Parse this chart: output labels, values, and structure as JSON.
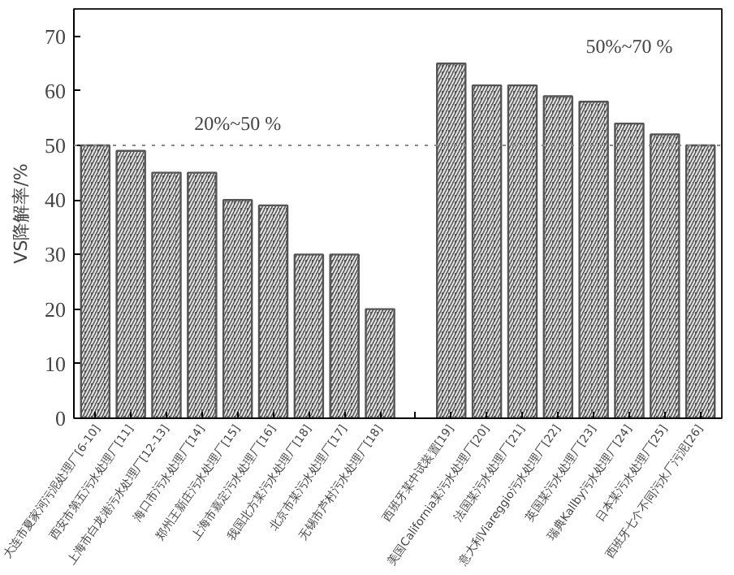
{
  "chart_data": {
    "type": "bar",
    "ylabel": "VS降解率/%",
    "categories": [
      "大连市夏家河污泥处理厂[6-10]",
      "西安市第五污水处理厂[11]",
      "上海市白龙港污水处理厂[12-13]",
      "海口市污水处理厂[14]",
      "郑州王新庄污水处理厂[15]",
      "上海市嘉定污水处理厂[16]",
      "我国北方某污水处理厂[18]",
      "北京市某污水处理厂[17]",
      "无锡市芦村污水处理厂[18]",
      null,
      "西班牙某中试装置[19]",
      "美国California某污水处理厂[20]",
      "法国某污水处理厂[21]",
      "意大利Viareggio污水处理厂[22]",
      "英国某污水处理厂[23]",
      "瑞典Kallby污水处理厂[24]",
      "日本某污水处理厂[25]",
      "西班牙七个不同污水厂污泥[26]"
    ],
    "values": [
      50,
      49,
      45,
      45,
      40,
      39,
      30,
      30,
      20,
      null,
      65,
      61,
      61,
      59,
      58,
      54,
      52,
      50
    ],
    "color": "#555555",
    "ylim": [
      0,
      75
    ],
    "yticks": [
      0,
      10,
      20,
      30,
      40,
      50,
      60,
      70
    ],
    "ref_lines": [
      {
        "axis": "y",
        "value": 50,
        "label": null,
        "line_style": "dotted",
        "color": "#888888"
      }
    ],
    "annotations": [
      "20%~50 %",
      "50%~70 %"
    ],
    "grid": false
  }
}
